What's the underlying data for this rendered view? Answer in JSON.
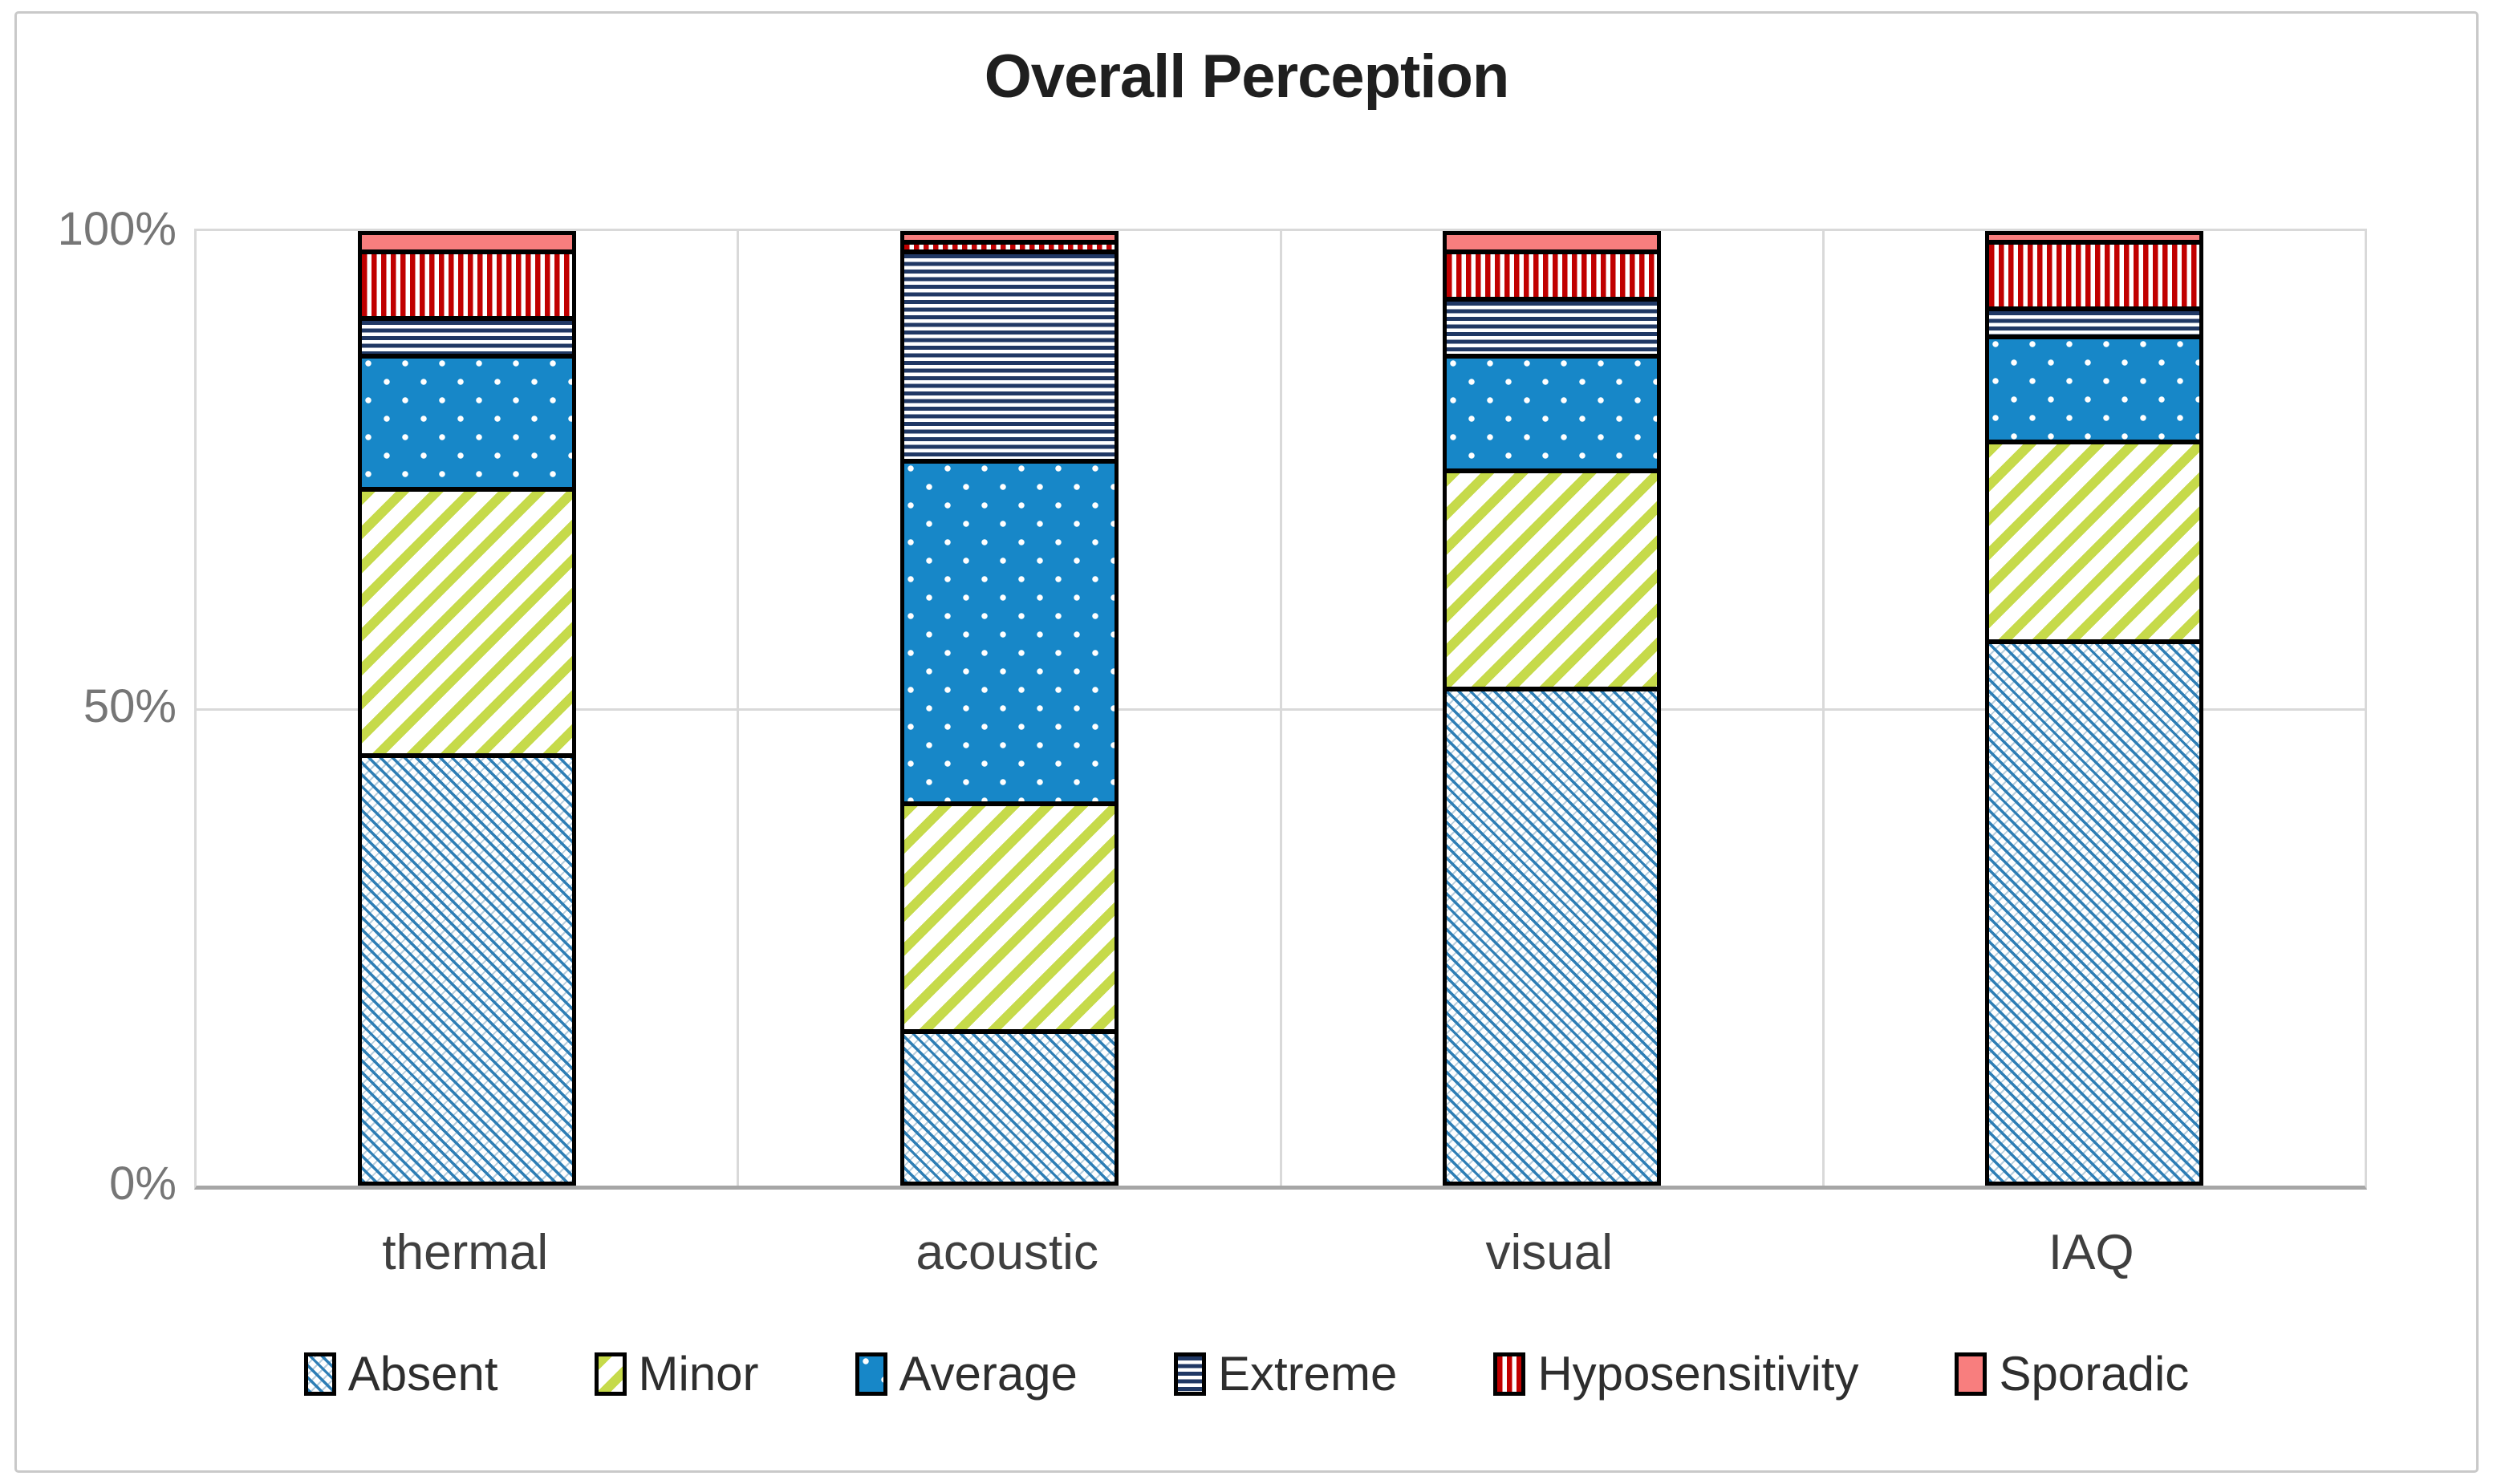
{
  "figure": {
    "title": "Overall Perception",
    "frame_border_color": "#c9c9c9",
    "background_color": "#ffffff"
  },
  "y_axis": {
    "ticks": [
      "100%",
      "50%",
      "0%"
    ],
    "text_color": "#767676"
  },
  "chart_data": {
    "type": "bar",
    "subtype": "stacked-100-percent-column",
    "title": "Overall Perception",
    "xlabel": "",
    "ylabel": "",
    "ylim": [
      0,
      100
    ],
    "y_tick_labels": [
      "0%",
      "50%",
      "100%"
    ],
    "grid": true,
    "gridline_color": "#d9d9d9",
    "axis_line_color": "#a6a6a6",
    "legend_position": "bottom",
    "categories": [
      "thermal",
      "acoustic",
      "visual",
      "IAQ"
    ],
    "series": [
      {
        "name": "Absent",
        "key": "absent",
        "pattern": "thin-diagonal-crosshatch-blue-on-white",
        "color": "#2E7EB5",
        "values": [
          45,
          16,
          52,
          57
        ]
      },
      {
        "name": "Minor",
        "key": "minor",
        "pattern": "diagonal-stripes-yellow-green-on-white",
        "color": "#C6DA4A",
        "values": [
          28,
          24,
          23,
          21
        ]
      },
      {
        "name": "Average",
        "key": "average",
        "pattern": "white-dots-on-blue",
        "color": "#1787C8",
        "values": [
          14,
          36,
          12,
          11
        ]
      },
      {
        "name": "Extreme",
        "key": "extreme",
        "pattern": "horizontal-stripes-navy-on-white",
        "color": "#203864",
        "values": [
          4,
          22,
          6,
          3
        ]
      },
      {
        "name": "Hyposensitivity",
        "key": "hyposensitivity",
        "pattern": "vertical-stripes-red-on-white",
        "color": "#C00000",
        "values": [
          7,
          1,
          5,
          7
        ]
      },
      {
        "name": "Sporadic",
        "key": "sporadic",
        "pattern": "solid-salmon",
        "color": "#F87E7E",
        "values": [
          2,
          1,
          2,
          1
        ]
      }
    ]
  }
}
